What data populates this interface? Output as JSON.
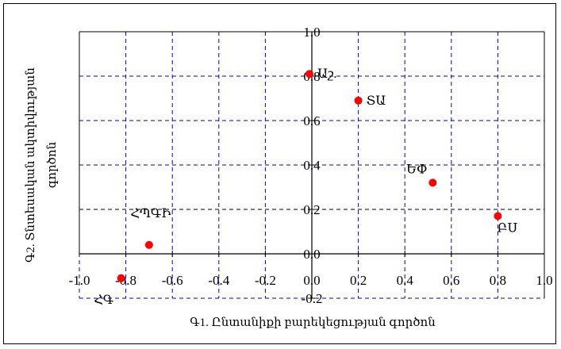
{
  "chart_data": {
    "type": "scatter",
    "title": "",
    "xlabel": "Գ1. Ընտանիքի բարեկեցության գործոն",
    "ylabel_line1": "Գ2. Տնտեսական ակտիվության",
    "ylabel_line2": "գործոն",
    "xlim": [
      -1.0,
      1.0
    ],
    "ylim": [
      -0.2,
      1.0
    ],
    "x_ticks": [
      -1.0,
      -0.8,
      -0.6,
      -0.4,
      -0.2,
      0.0,
      0.2,
      0.4,
      0.6,
      0.8,
      1.0
    ],
    "x_tick_labels": [
      "-1.0",
      "-0.8",
      "-0.6",
      "-0.4",
      "-0.2",
      "0.0",
      "0.2",
      "0.4",
      "0.6",
      "0.8",
      "1.0"
    ],
    "y_ticks": [
      -0.2,
      0.0,
      0.2,
      0.4,
      0.6,
      0.8,
      1.0
    ],
    "y_tick_labels": [
      "-0.2",
      "0.0",
      "0.2",
      "0.4",
      "0.6",
      "0.8",
      "1.0"
    ],
    "grid": true,
    "marker_color": "#ff0000",
    "grid_color": "#0000cc",
    "points": [
      {
        "label": "Աշ.",
        "x": -0.01,
        "y": 0.81,
        "label_pos": "right"
      },
      {
        "label": "ՏԱ",
        "x": 0.2,
        "y": 0.69,
        "label_pos": "right"
      },
      {
        "label": "ԵՓ",
        "x": 0.52,
        "y": 0.32,
        "label_pos": "above-left"
      },
      {
        "label": "ԲՍ",
        "x": 0.8,
        "y": 0.17,
        "label_pos": "below"
      },
      {
        "label": "ՀՊԳԻ",
        "x": -0.7,
        "y": 0.04,
        "label_pos": "above"
      },
      {
        "label": "ՀԳ",
        "x": -0.82,
        "y": -0.11,
        "label_pos": "below-left"
      }
    ]
  }
}
